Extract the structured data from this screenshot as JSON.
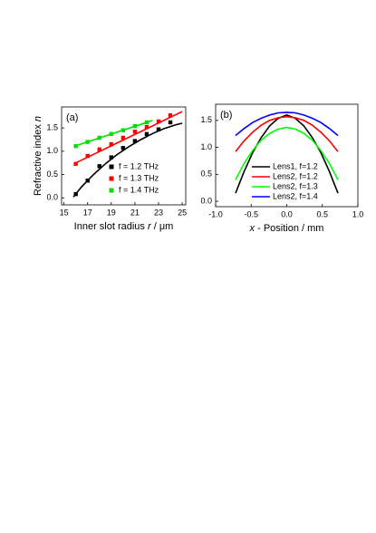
{
  "chart_data": [
    {
      "type": "scatter",
      "panel_label": "(a)",
      "xlabel": {
        "text": "Inner slot radius ",
        "var": "r",
        "unit": " / μm"
      },
      "ylabel": {
        "text": "Refractive index ",
        "var": "n"
      },
      "xlim": [
        14.8,
        25.3
      ],
      "xticks": [
        15,
        17,
        19,
        21,
        23,
        25
      ],
      "ylim": [
        -0.15,
        1.95
      ],
      "yticks": [
        {
          "value": 0,
          "label": "0.0"
        },
        0.5,
        {
          "value": 1,
          "label": "1.0"
        },
        1.5
      ],
      "legend": "lower right",
      "series": [
        {
          "name": "f = 1.2 THz",
          "color": "#000000",
          "x": [
            16,
            17,
            18,
            19,
            20,
            21,
            22,
            23,
            24
          ],
          "values": [
            0.08,
            0.37,
            0.68,
            0.87,
            1.07,
            1.22,
            1.37,
            1.47,
            1.62
          ],
          "fit": {
            "x": [
              15.8,
              16.5,
              17.5,
              18.5,
              19.5,
              20.5,
              21.5,
              22.5,
              23.5,
              24.5,
              25
            ],
            "y": [
              0.02,
              0.24,
              0.5,
              0.73,
              0.93,
              1.1,
              1.25,
              1.38,
              1.49,
              1.57,
              1.6
            ]
          }
        },
        {
          "name": "f = 1.3 THz",
          "color": "#ff0000",
          "x": [
            16,
            17,
            18,
            19,
            20,
            21,
            22,
            23,
            24
          ],
          "values": [
            0.73,
            0.9,
            1.04,
            1.15,
            1.29,
            1.42,
            1.52,
            1.64,
            1.77
          ],
          "fit": {
            "x": [
              16,
              25
            ],
            "y": [
              0.75,
              1.85
            ]
          }
        },
        {
          "name": "f = 1.4 THz",
          "color": "#00e000",
          "x": [
            16,
            17,
            18,
            19,
            20,
            21,
            22
          ],
          "values": [
            1.11,
            1.2,
            1.29,
            1.37,
            1.45,
            1.54,
            1.62
          ],
          "fit": {
            "x": [
              16,
              22.5
            ],
            "y": [
              1.12,
              1.66
            ]
          }
        }
      ]
    },
    {
      "type": "line",
      "panel_label": "(b)",
      "xlabel": {
        "var": "x",
        "text": " - Position / mm"
      },
      "xlim": [
        -1,
        1
      ],
      "xticks": [
        {
          "value": -1,
          "label": "-1.0"
        },
        -0.5,
        {
          "value": 0,
          "label": "0.0"
        },
        0.5,
        {
          "value": 1,
          "label": "1.0"
        }
      ],
      "ylim": [
        -0.1,
        1.8
      ],
      "yticks": [
        {
          "value": 0,
          "label": "0.0"
        },
        0.5,
        {
          "value": 1,
          "label": "1.0"
        },
        1.5
      ],
      "legend": "lower center",
      "x": [
        -0.72,
        -0.6,
        -0.48,
        -0.36,
        -0.24,
        -0.12,
        0,
        0.12,
        0.24,
        0.36,
        0.48,
        0.6,
        0.72
      ],
      "series": [
        {
          "name": "Lens1, f=1.2",
          "color": "#000000",
          "values": [
            0.15,
            0.55,
            0.9,
            1.18,
            1.4,
            1.54,
            1.6,
            1.54,
            1.4,
            1.18,
            0.9,
            0.55,
            0.15
          ]
        },
        {
          "name": "Lens2, f=1.2",
          "color": "#ff0000",
          "values": [
            0.92,
            1.12,
            1.28,
            1.41,
            1.5,
            1.55,
            1.57,
            1.55,
            1.5,
            1.41,
            1.28,
            1.12,
            0.92
          ]
        },
        {
          "name": "Lens2, f=1.3",
          "color": "#00ff00",
          "values": [
            0.4,
            0.7,
            0.94,
            1.13,
            1.26,
            1.34,
            1.37,
            1.34,
            1.26,
            1.13,
            0.94,
            0.7,
            0.4
          ]
        },
        {
          "name": "Lens2, f=1.4",
          "color": "#0000ff",
          "values": [
            1.22,
            1.35,
            1.46,
            1.54,
            1.6,
            1.64,
            1.65,
            1.64,
            1.6,
            1.54,
            1.46,
            1.35,
            1.22
          ]
        }
      ]
    }
  ]
}
